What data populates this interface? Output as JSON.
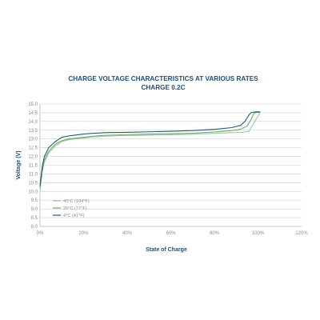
{
  "chart_data": {
    "type": "line",
    "title": "CHARGE VOLTAGE CHARACTERISTICS AT VARIOUS RATES",
    "subtitle": "CHARGE 0.2C",
    "xlabel": "State of Charge",
    "ylabel": "Voltage (V)",
    "xlim": [
      0,
      120
    ],
    "ylim": [
      8.0,
      15.0
    ],
    "x_ticks": [
      "0%",
      "20%",
      "40%",
      "60%",
      "80%",
      "100%",
      "120%"
    ],
    "y_ticks": [
      "8.0",
      "8.5",
      "9.0",
      "9.5",
      "10.0",
      "10.5",
      "11.0",
      "11.5",
      "12.0",
      "12.5",
      "13.0",
      "13.5",
      "14.0",
      "14.5",
      "15.0"
    ],
    "grid": true,
    "legend_position": "bottom-left",
    "series": [
      {
        "name": "40°C (104°F)",
        "color": "#9cc8a6",
        "points": [
          [
            0,
            10.1
          ],
          [
            1,
            11.1
          ],
          [
            2,
            11.7
          ],
          [
            4,
            12.2
          ],
          [
            7,
            12.6
          ],
          [
            10,
            12.85
          ],
          [
            13,
            12.95
          ],
          [
            16,
            13.0
          ],
          [
            20,
            13.05
          ],
          [
            25,
            13.12
          ],
          [
            30,
            13.16
          ],
          [
            40,
            13.2
          ],
          [
            50,
            13.22
          ],
          [
            60,
            13.24
          ],
          [
            70,
            13.27
          ],
          [
            80,
            13.32
          ],
          [
            88,
            13.36
          ],
          [
            93,
            13.38
          ],
          [
            96,
            13.45
          ],
          [
            98,
            13.9
          ],
          [
            99,
            14.1
          ],
          [
            100,
            14.3
          ],
          [
            101,
            14.5
          ]
        ]
      },
      {
        "name": "25°C (77°F)",
        "color": "#6aaf5c",
        "points": [
          [
            0,
            10.2
          ],
          [
            1,
            11.2
          ],
          [
            2,
            11.8
          ],
          [
            4,
            12.3
          ],
          [
            7,
            12.7
          ],
          [
            10,
            12.9
          ],
          [
            13,
            13.0
          ],
          [
            16,
            13.05
          ],
          [
            20,
            13.1
          ],
          [
            25,
            13.17
          ],
          [
            30,
            13.21
          ],
          [
            40,
            13.25
          ],
          [
            50,
            13.28
          ],
          [
            60,
            13.3
          ],
          [
            70,
            13.33
          ],
          [
            80,
            13.4
          ],
          [
            88,
            13.48
          ],
          [
            92,
            13.55
          ],
          [
            95,
            13.75
          ],
          [
            97,
            14.15
          ],
          [
            98,
            14.45
          ],
          [
            99,
            14.52
          ],
          [
            101,
            14.52
          ]
        ]
      },
      {
        "name": "4°C (41°F)",
        "color": "#1e5a78",
        "points": [
          [
            0,
            10.3
          ],
          [
            1,
            11.4
          ],
          [
            2,
            12.0
          ],
          [
            4,
            12.5
          ],
          [
            7,
            12.85
          ],
          [
            10,
            13.1
          ],
          [
            13,
            13.17
          ],
          [
            16,
            13.22
          ],
          [
            20,
            13.28
          ],
          [
            25,
            13.33
          ],
          [
            30,
            13.36
          ],
          [
            40,
            13.38
          ],
          [
            50,
            13.41
          ],
          [
            60,
            13.44
          ],
          [
            70,
            13.48
          ],
          [
            80,
            13.55
          ],
          [
            88,
            13.65
          ],
          [
            92,
            13.78
          ],
          [
            94,
            14.0
          ],
          [
            96,
            14.4
          ],
          [
            97,
            14.52
          ],
          [
            99,
            14.55
          ],
          [
            101,
            14.55
          ]
        ]
      }
    ]
  }
}
